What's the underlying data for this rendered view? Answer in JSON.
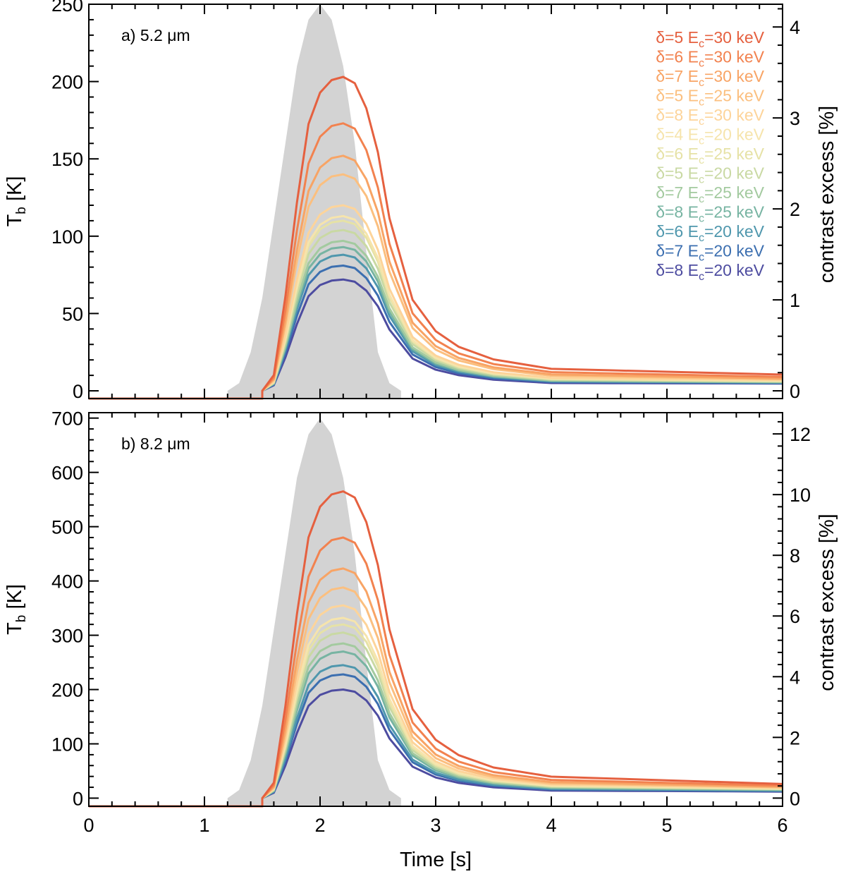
{
  "chart_data": [
    {
      "type": "line",
      "panel_label": "a) 5.2 μm",
      "xlabel": "Time [s]",
      "ylabel": "T_b [K]",
      "ylabel_parts": {
        "main": "T",
        "sub": "b",
        "unit": " [K]"
      },
      "y2label": "contrast excess [%]",
      "xlim": [
        0,
        6
      ],
      "ylim": [
        -5,
        250
      ],
      "y2lim": [
        -0.085,
        4.25
      ],
      "xticks": [
        0,
        1,
        2,
        3,
        4,
        5,
        6
      ],
      "yticks": [
        0,
        50,
        100,
        150,
        200,
        250
      ],
      "y2ticks": [
        0,
        1,
        2,
        3,
        4
      ],
      "background_profile": {
        "color": "#d3d3d3",
        "peak_x": 2.0,
        "peak_y": 250,
        "x": [
          1.2,
          1.3,
          1.4,
          1.5,
          1.6,
          1.7,
          1.8,
          1.9,
          2.0,
          2.1,
          2.2,
          2.3,
          2.4,
          2.5,
          2.6,
          2.7
        ],
        "y": [
          0,
          5,
          25,
          60,
          110,
          160,
          210,
          240,
          250,
          240,
          210,
          160,
          90,
          25,
          5,
          0
        ]
      },
      "series": [
        {
          "name": "δ=5 E_c=30 keV",
          "delta": "5",
          "ec": "30",
          "color": "#e5603f",
          "peak": 203,
          "tail": 10.5
        },
        {
          "name": "δ=6 E_c=30 keV",
          "delta": "6",
          "ec": "30",
          "color": "#f2824f",
          "peak": 173,
          "tail": 9.0
        },
        {
          "name": "δ=7 E_c=30 keV",
          "delta": "7",
          "ec": "30",
          "color": "#f8a465",
          "peak": 152,
          "tail": 8.0
        },
        {
          "name": "δ=5 E_c=25 keV",
          "delta": "5",
          "ec": "25",
          "color": "#fbbf7f",
          "peak": 140,
          "tail": 7.5
        },
        {
          "name": "δ=8 E_c=30 keV",
          "delta": "8",
          "ec": "30",
          "color": "#fdd49a",
          "peak": 120,
          "tail": 7.0
        },
        {
          "name": "δ=4 E_c=20 keV",
          "delta": "4",
          "ec": "20",
          "color": "#f6e4ac",
          "peak": 113,
          "tail": 6.5
        },
        {
          "name": "δ=6 E_c=25 keV",
          "delta": "6",
          "ec": "25",
          "color": "#e6e2a6",
          "peak": 110,
          "tail": 6.3
        },
        {
          "name": "δ=5 E_c=20 keV",
          "delta": "5",
          "ec": "20",
          "color": "#c9d9a3",
          "peak": 104,
          "tail": 6.0
        },
        {
          "name": "δ=7 E_c=25 keV",
          "delta": "7",
          "ec": "25",
          "color": "#a3ca9f",
          "peak": 97,
          "tail": 5.8
        },
        {
          "name": "δ=8 E_c=25 keV",
          "delta": "8",
          "ec": "25",
          "color": "#77b4a2",
          "peak": 93,
          "tail": 5.5
        },
        {
          "name": "δ=6 E_c=20 keV",
          "delta": "6",
          "ec": "20",
          "color": "#4f97ad",
          "peak": 88,
          "tail": 5.2
        },
        {
          "name": "δ=7 E_c=20 keV",
          "delta": "7",
          "ec": "20",
          "color": "#3c6fb0",
          "peak": 81,
          "tail": 5.0
        },
        {
          "name": "δ=8 E_c=20 keV",
          "delta": "8",
          "ec": "20",
          "color": "#4d4ca0",
          "peak": 72,
          "tail": 4.7
        }
      ],
      "curve_shape": {
        "x": [
          1.5,
          1.6,
          1.7,
          1.8,
          1.9,
          2.0,
          2.1,
          2.2,
          2.3,
          2.4,
          2.5,
          2.6,
          2.8,
          3.0,
          3.2,
          3.5,
          4.0,
          4.5,
          5.0,
          5.5,
          6.0
        ],
        "relative_y": [
          0,
          0.05,
          0.3,
          0.6,
          0.85,
          0.95,
          0.99,
          1.0,
          0.98,
          0.9,
          0.76,
          0.55,
          0.29,
          0.19,
          0.14,
          0.1,
          0.07,
          0.055,
          0.045,
          0.04,
          0.035
        ]
      }
    },
    {
      "type": "line",
      "panel_label": "b) 8.2 μm",
      "xlabel": "Time [s]",
      "ylabel": "T_b [K]",
      "ylabel_parts": {
        "main": "T",
        "sub": "b",
        "unit": " [K]"
      },
      "y2label": "contrast excess [%]",
      "xlim": [
        0,
        6
      ],
      "ylim": [
        -15,
        710
      ],
      "y2lim": [
        -0.27,
        12.7
      ],
      "xticks": [
        0,
        1,
        2,
        3,
        4,
        5,
        6
      ],
      "yticks": [
        0,
        100,
        200,
        300,
        400,
        500,
        600,
        700
      ],
      "y2ticks": [
        0,
        2,
        4,
        6,
        8,
        10,
        12
      ],
      "background_profile": {
        "color": "#d3d3d3",
        "peak_x": 2.0,
        "peak_y": 700,
        "x": [
          1.2,
          1.3,
          1.4,
          1.5,
          1.6,
          1.7,
          1.8,
          1.9,
          2.0,
          2.1,
          2.2,
          2.3,
          2.4,
          2.5,
          2.6,
          2.7
        ],
        "y": [
          0,
          15,
          70,
          170,
          310,
          450,
          590,
          670,
          700,
          670,
          590,
          450,
          250,
          70,
          15,
          0
        ]
      },
      "series": [
        {
          "name": "δ=5 E_c=30 keV",
          "delta": "5",
          "ec": "30",
          "color": "#e5603f",
          "peak": 565,
          "tail": 26
        },
        {
          "name": "δ=6 E_c=30 keV",
          "delta": "6",
          "ec": "30",
          "color": "#f2824f",
          "peak": 480,
          "tail": 23
        },
        {
          "name": "δ=7 E_c=30 keV",
          "delta": "7",
          "ec": "30",
          "color": "#f8a465",
          "peak": 423,
          "tail": 21
        },
        {
          "name": "δ=5 E_c=25 keV",
          "delta": "5",
          "ec": "25",
          "color": "#fbbf7f",
          "peak": 388,
          "tail": 20
        },
        {
          "name": "δ=8 E_c=30 keV",
          "delta": "8",
          "ec": "30",
          "color": "#fdd49a",
          "peak": 355,
          "tail": 19
        },
        {
          "name": "δ=4 E_c=20 keV",
          "delta": "4",
          "ec": "20",
          "color": "#f6e4ac",
          "peak": 332,
          "tail": 18
        },
        {
          "name": "δ=6 E_c=25 keV",
          "delta": "6",
          "ec": "25",
          "color": "#e6e2a6",
          "peak": 320,
          "tail": 17
        },
        {
          "name": "δ=5 E_c=20 keV",
          "delta": "5",
          "ec": "20",
          "color": "#c9d9a3",
          "peak": 305,
          "tail": 16.5
        },
        {
          "name": "δ=7 E_c=25 keV",
          "delta": "7",
          "ec": "25",
          "color": "#a3ca9f",
          "peak": 285,
          "tail": 16
        },
        {
          "name": "δ=8 E_c=25 keV",
          "delta": "8",
          "ec": "25",
          "color": "#77b4a2",
          "peak": 270,
          "tail": 15
        },
        {
          "name": "δ=6 E_c=20 keV",
          "delta": "6",
          "ec": "20",
          "color": "#4f97ad",
          "peak": 245,
          "tail": 14
        },
        {
          "name": "δ=7 E_c=20 keV",
          "delta": "7",
          "ec": "20",
          "color": "#3c6fb0",
          "peak": 228,
          "tail": 13
        },
        {
          "name": "δ=8 E_c=20 keV",
          "delta": "8",
          "ec": "20",
          "color": "#4d4ca0",
          "peak": 200,
          "tail": 12
        }
      ],
      "curve_shape": {
        "x": [
          1.5,
          1.6,
          1.7,
          1.8,
          1.9,
          2.0,
          2.1,
          2.2,
          2.3,
          2.4,
          2.5,
          2.6,
          2.8,
          3.0,
          3.2,
          3.5,
          4.0,
          4.5,
          5.0,
          5.5,
          6.0
        ],
        "relative_y": [
          0,
          0.05,
          0.3,
          0.6,
          0.85,
          0.95,
          0.99,
          1.0,
          0.98,
          0.9,
          0.76,
          0.55,
          0.29,
          0.19,
          0.14,
          0.1,
          0.07,
          0.055,
          0.045,
          0.04,
          0.035
        ]
      }
    }
  ],
  "legend": {
    "delta_prefix": "δ=",
    "ec_prefix": " E",
    "ec_sub": "c",
    "ec_join": "=",
    "unit": " keV"
  }
}
